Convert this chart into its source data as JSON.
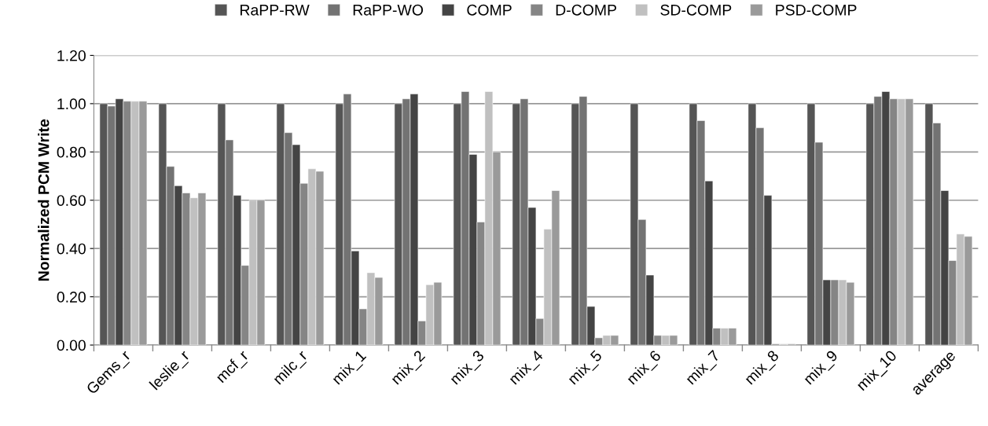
{
  "chart_data": {
    "type": "bar",
    "ylabel": "Normalized PCM Write",
    "categories": [
      "Gems_r",
      "leslie_r",
      "mcf_r",
      "milc_r",
      "mix_1",
      "mix_2",
      "mix_3",
      "mix_4",
      "mix_5",
      "mix_6",
      "mix_7",
      "mix_8",
      "mix_9",
      "mix_10",
      "average"
    ],
    "series": [
      {
        "name": "RaPP-RW",
        "color": "#555555",
        "values": [
          1.0,
          1.0,
          1.0,
          1.0,
          1.0,
          1.0,
          1.0,
          1.0,
          1.0,
          1.0,
          1.0,
          1.0,
          1.0,
          1.0,
          1.0
        ]
      },
      {
        "name": "RaPP-WO",
        "color": "#737373",
        "values": [
          0.99,
          0.74,
          0.85,
          0.88,
          1.04,
          1.02,
          1.05,
          1.02,
          1.03,
          0.52,
          0.93,
          0.9,
          0.84,
          1.03,
          0.92
        ]
      },
      {
        "name": "COMP",
        "color": "#444444",
        "values": [
          1.02,
          0.66,
          0.62,
          0.83,
          0.39,
          1.04,
          0.79,
          0.57,
          0.16,
          0.29,
          0.68,
          0.62,
          0.27,
          1.05,
          0.64
        ]
      },
      {
        "name": "D-COMP",
        "color": "#858585",
        "values": [
          1.01,
          0.63,
          0.33,
          0.67,
          0.15,
          0.1,
          0.51,
          0.11,
          0.03,
          0.04,
          0.07,
          0.005,
          0.27,
          1.02,
          0.35
        ]
      },
      {
        "name": "SD-COMP",
        "color": "#c0c0c0",
        "values": [
          1.01,
          0.61,
          0.6,
          0.73,
          0.3,
          0.25,
          1.05,
          0.48,
          0.04,
          0.04,
          0.07,
          0.005,
          0.27,
          1.02,
          0.46
        ]
      },
      {
        "name": "PSD-COMP",
        "color": "#9a9a9a",
        "values": [
          1.01,
          0.63,
          0.6,
          0.72,
          0.28,
          0.26,
          0.8,
          0.64,
          0.04,
          0.04,
          0.07,
          0.005,
          0.26,
          1.02,
          0.45
        ]
      }
    ],
    "ylim": [
      0,
      1.2
    ],
    "yticks": [
      {
        "value": 0,
        "label": "0.00"
      },
      {
        "value": 0.2,
        "label": "0.20"
      },
      {
        "value": 0.4,
        "label": "0.40"
      },
      {
        "value": 0.6,
        "label": "0.60"
      },
      {
        "value": 0.8,
        "label": "0.80"
      },
      {
        "value": 1.0,
        "label": "1.00"
      },
      {
        "value": 1.2,
        "label": "1.20"
      }
    ],
    "grid": "y",
    "legend": "top"
  }
}
